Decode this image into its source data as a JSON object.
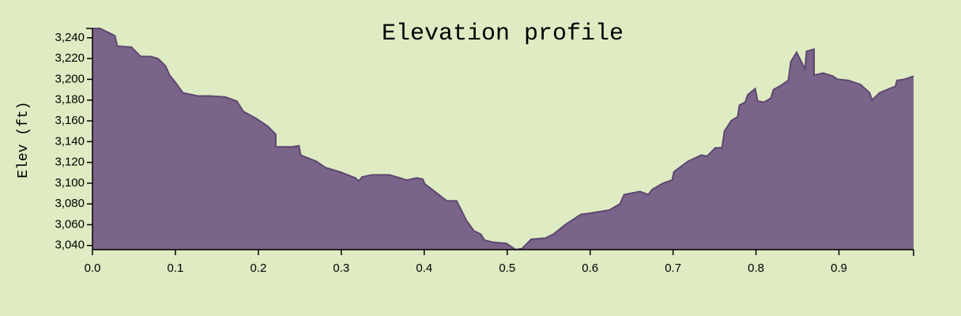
{
  "chart_data": {
    "type": "area",
    "title": "Elevation profile",
    "y_label": "Elev (ft)",
    "color": "#7b6489",
    "line_color": "#5d4870",
    "x": [
      0,
      0.009,
      0.027,
      0.03,
      0.047,
      0.058,
      0.07,
      0.079,
      0.088,
      0.093,
      0.1,
      0.109,
      0.127,
      0.141,
      0.16,
      0.174,
      0.182,
      0.198,
      0.211,
      0.221,
      0.221,
      0.241,
      0.249,
      0.251,
      0.27,
      0.281,
      0.298,
      0.317,
      0.321,
      0.325,
      0.337,
      0.358,
      0.379,
      0.391,
      0.398,
      0.401,
      0.411,
      0.427,
      0.439,
      0.451,
      0.46,
      0.468,
      0.473,
      0.484,
      0.499,
      0.51,
      0.518,
      0.529,
      0.546,
      0.556,
      0.57,
      0.589,
      0.599,
      0.623,
      0.636,
      0.641,
      0.66,
      0.67,
      0.675,
      0.688,
      0.699,
      0.701,
      0.718,
      0.734,
      0.741,
      0.751,
      0.759,
      0.762,
      0.77,
      0.778,
      0.78,
      0.787,
      0.79,
      0.799,
      0.802,
      0.81,
      0.818,
      0.821,
      0.83,
      0.839,
      0.842,
      0.849,
      0.859,
      0.861,
      0.87,
      0.87,
      0.881,
      0.893,
      0.898,
      0.911,
      0.926,
      0.937,
      0.94,
      0.949,
      0.964,
      0.968,
      0.97,
      0.979,
      0.99
    ],
    "values": [
      3249,
      3249,
      3242,
      3232,
      3231,
      3222,
      3222,
      3220,
      3213,
      3204,
      3197,
      3187,
      3184,
      3184,
      3183,
      3179,
      3169,
      3162,
      3155,
      3147,
      3135,
      3135,
      3136,
      3127,
      3121,
      3115,
      3111,
      3105,
      3102,
      3106,
      3108,
      3108,
      3103,
      3105,
      3104,
      3099,
      3093,
      3083,
      3083,
      3064,
      3054,
      3051,
      3045,
      3043,
      3042,
      3036,
      3037,
      3046,
      3047,
      3051,
      3060,
      3070,
      3071,
      3074,
      3080,
      3089,
      3092,
      3089,
      3094,
      3100,
      3103,
      3111,
      3121,
      3127,
      3126,
      3134,
      3134,
      3150,
      3160,
      3164,
      3175,
      3178,
      3185,
      3191,
      3179,
      3178,
      3182,
      3190,
      3194,
      3199,
      3217,
      3226,
      3210,
      3227,
      3229,
      3204,
      3206,
      3203,
      3200,
      3199,
      3195,
      3187,
      3180,
      3187,
      3192,
      3193,
      3199,
      3200,
      3203
    ],
    "xlim": [
      0,
      0.99
    ],
    "ylim": [
      3036,
      3249
    ],
    "xticks": [
      {
        "value": 0,
        "label": "0.0"
      },
      0.1,
      0.2,
      0.3,
      0.4,
      0.5,
      0.6,
      0.7,
      0.8,
      0.9
    ],
    "yticks": [
      {
        "value": 3040,
        "label": "3,040"
      },
      {
        "value": 3060,
        "label": "3,060"
      },
      {
        "value": 3080,
        "label": "3,080"
      },
      {
        "value": 3100,
        "label": "3,100"
      },
      {
        "value": 3120,
        "label": "3,120"
      },
      {
        "value": 3140,
        "label": "3,140"
      },
      {
        "value": 3160,
        "label": "3,160"
      },
      {
        "value": 3180,
        "label": "3,180"
      },
      {
        "value": 3200,
        "label": "3,200"
      },
      {
        "value": 3220,
        "label": "3,220"
      },
      {
        "value": 3240,
        "label": "3,240"
      }
    ]
  }
}
